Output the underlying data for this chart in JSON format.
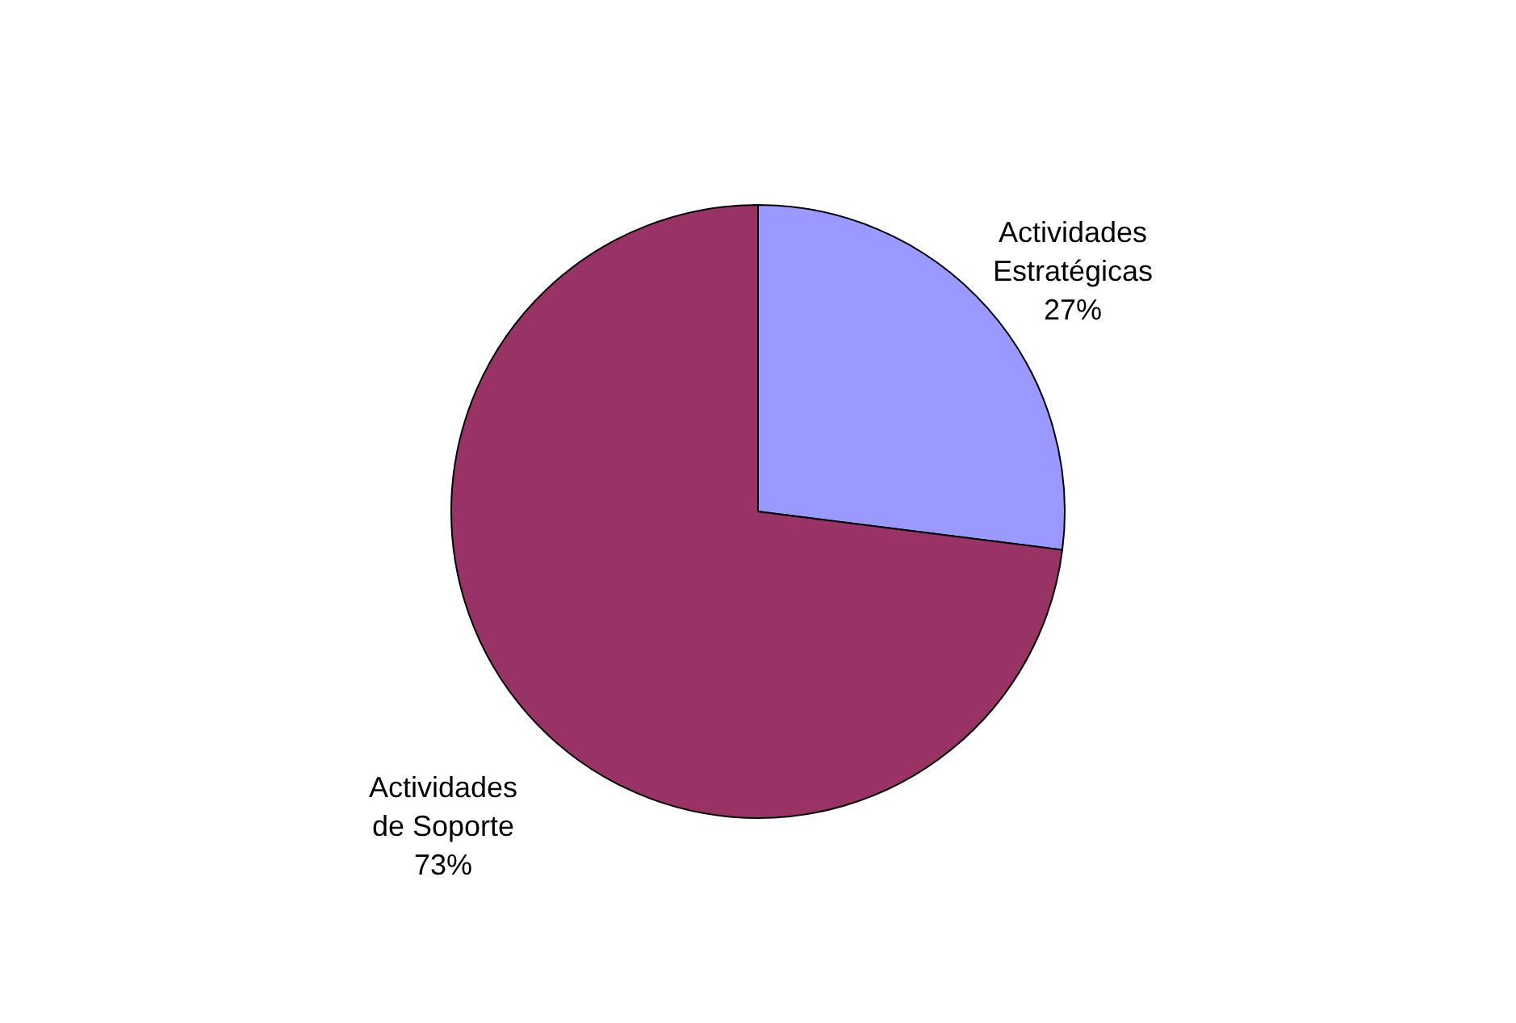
{
  "chart_data": {
    "type": "pie",
    "categories": [
      "Actividades Estratégicas",
      "Actividades de Soporte"
    ],
    "values": [
      27,
      73
    ],
    "colors": [
      "#9999ff",
      "#993366"
    ],
    "value_labels": [
      "27%",
      "73%"
    ],
    "legend": false
  }
}
